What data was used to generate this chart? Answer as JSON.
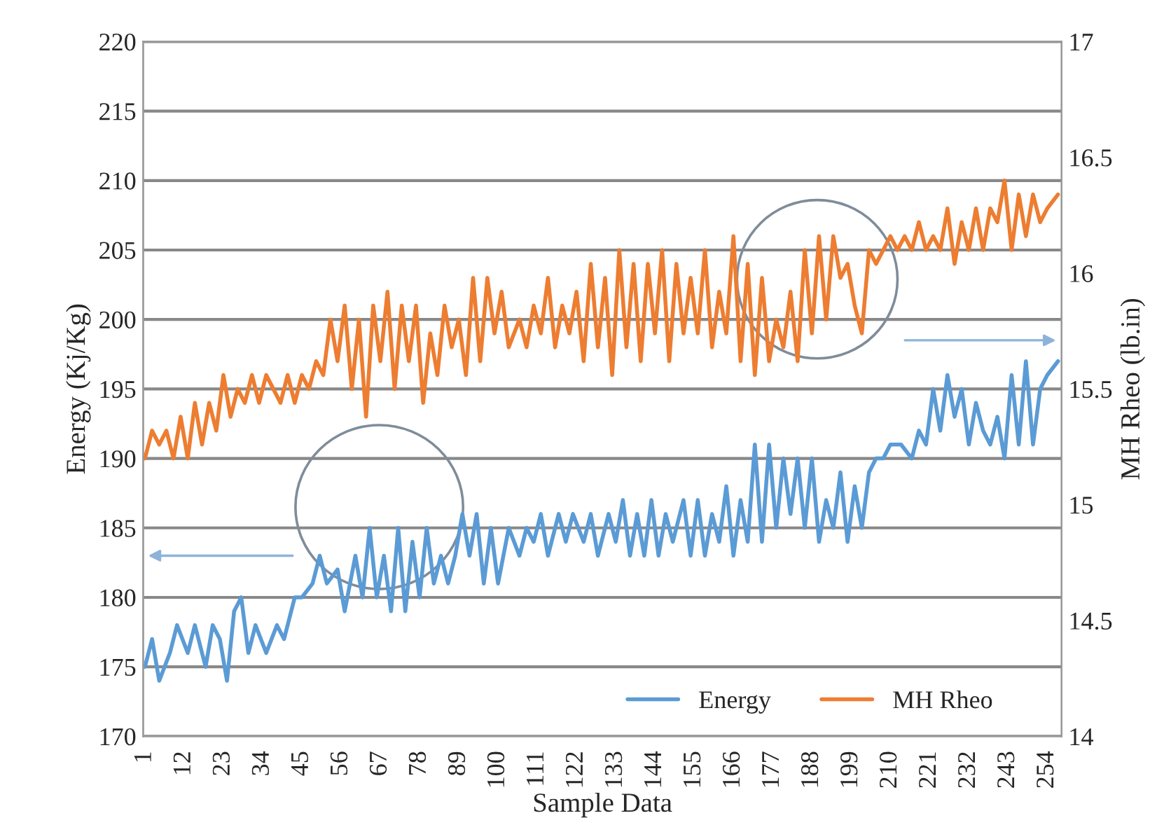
{
  "chart_data": {
    "type": "line",
    "xlabel": "Sample Data",
    "ylabel": "Energy (Kj/Kg)",
    "y2label": "MH Rheo (lb.in)",
    "xlim": [
      0.5,
      258
    ],
    "xticks": [
      1,
      12,
      23,
      34,
      45,
      56,
      67,
      78,
      89,
      100,
      111,
      122,
      133,
      144,
      155,
      166,
      177,
      188,
      199,
      210,
      221,
      232,
      243,
      254
    ],
    "ylim": [
      170,
      220
    ],
    "yticks": [
      170,
      175,
      180,
      185,
      190,
      195,
      200,
      205,
      210,
      215,
      220
    ],
    "y2lim": [
      14,
      17
    ],
    "y2ticks": [
      14,
      {
        "value": 14.5,
        "label": "14.5"
      },
      15,
      {
        "value": 15.5,
        "label": "15.5"
      },
      16,
      {
        "value": 16.5,
        "label": "16.5"
      },
      17
    ],
    "grid": "y",
    "legend": "bottom right",
    "marker": "none",
    "line_style": "solid",
    "series": [
      {
        "name": "Energy",
        "color": "#5b9bd5",
        "x": [
          1,
          3,
          5,
          8,
          10,
          13,
          15,
          18,
          20,
          22,
          24,
          26,
          28,
          30,
          32,
          35,
          38,
          40,
          43,
          45,
          48,
          50,
          52,
          55,
          57,
          60,
          62,
          64,
          66,
          68,
          70,
          72,
          74,
          76,
          78,
          80,
          82,
          84,
          86,
          88,
          90,
          92,
          94,
          96,
          98,
          100,
          103,
          106,
          108,
          110,
          112,
          114,
          117,
          119,
          121,
          124,
          126,
          128,
          131,
          133,
          135,
          137,
          139,
          141,
          143,
          145,
          147,
          149,
          152,
          154,
          156,
          158,
          160,
          162,
          164,
          166,
          168,
          170,
          172,
          174,
          176,
          178,
          180,
          182,
          184,
          186,
          188,
          190,
          192,
          194,
          196,
          198,
          200,
          202,
          204,
          206,
          208,
          210,
          213,
          216,
          218,
          220,
          222,
          224,
          226,
          228,
          230,
          232,
          234,
          236,
          238,
          240,
          242,
          244,
          246,
          248,
          250,
          252,
          254,
          257
        ],
        "values": [
          175,
          177,
          174,
          176,
          178,
          176,
          178,
          175,
          178,
          177,
          174,
          179,
          180,
          176,
          178,
          176,
          178,
          177,
          180,
          180,
          181,
          183,
          181,
          182,
          179,
          183,
          180,
          185,
          180,
          183,
          179,
          185,
          179,
          184,
          180,
          185,
          181,
          183,
          181,
          183,
          186,
          183,
          186,
          181,
          185,
          181,
          185,
          183,
          185,
          184,
          186,
          183,
          186,
          184,
          186,
          184,
          186,
          183,
          186,
          184,
          187,
          183,
          186,
          183,
          187,
          183,
          186,
          184,
          187,
          183,
          187,
          183,
          186,
          184,
          188,
          183,
          187,
          184,
          191,
          184,
          191,
          185,
          190,
          186,
          190,
          185,
          190,
          184,
          187,
          185,
          189,
          184,
          188,
          185,
          189,
          190,
          190,
          191,
          191,
          190,
          192,
          191,
          195,
          192,
          196,
          193,
          195,
          191,
          194,
          192,
          191,
          193,
          190,
          196,
          191,
          197,
          191,
          195,
          196,
          197
        ]
      },
      {
        "name": "MH Rheo",
        "color": "#ed7d31",
        "axis": "y2",
        "x": [
          1,
          3,
          5,
          7,
          9,
          11,
          13,
          15,
          17,
          19,
          21,
          23,
          25,
          27,
          29,
          31,
          33,
          35,
          37,
          39,
          41,
          43,
          45,
          47,
          49,
          51,
          53,
          55,
          57,
          59,
          61,
          63,
          65,
          67,
          69,
          71,
          73,
          75,
          77,
          79,
          81,
          83,
          85,
          87,
          89,
          91,
          93,
          95,
          97,
          99,
          101,
          103,
          106,
          108,
          110,
          112,
          114,
          116,
          118,
          120,
          122,
          124,
          126,
          128,
          130,
          132,
          134,
          136,
          138,
          140,
          142,
          144,
          146,
          148,
          150,
          152,
          154,
          156,
          158,
          160,
          162,
          164,
          166,
          168,
          170,
          172,
          174,
          176,
          178,
          180,
          182,
          184,
          186,
          188,
          190,
          192,
          194,
          196,
          198,
          200,
          202,
          204,
          206,
          208,
          210,
          212,
          214,
          216,
          218,
          220,
          222,
          224,
          226,
          228,
          230,
          232,
          234,
          236,
          238,
          240,
          242,
          244,
          246,
          248,
          250,
          252,
          254,
          257
        ],
        "values": [
          15.2,
          15.32,
          15.26,
          15.32,
          15.2,
          15.38,
          15.2,
          15.44,
          15.26,
          15.44,
          15.32,
          15.56,
          15.38,
          15.5,
          15.44,
          15.56,
          15.44,
          15.56,
          15.5,
          15.44,
          15.56,
          15.44,
          15.56,
          15.5,
          15.62,
          15.56,
          15.8,
          15.62,
          15.86,
          15.5,
          15.8,
          15.38,
          15.86,
          15.62,
          15.92,
          15.5,
          15.86,
          15.62,
          15.86,
          15.44,
          15.74,
          15.56,
          15.86,
          15.68,
          15.8,
          15.56,
          15.98,
          15.62,
          15.98,
          15.74,
          15.92,
          15.68,
          15.8,
          15.68,
          15.86,
          15.74,
          15.98,
          15.68,
          15.86,
          15.74,
          15.92,
          15.62,
          16.04,
          15.68,
          15.98,
          15.56,
          16.1,
          15.68,
          16.04,
          15.62,
          16.04,
          15.74,
          16.1,
          15.62,
          16.04,
          15.74,
          15.98,
          15.74,
          16.1,
          15.68,
          15.92,
          15.74,
          16.16,
          15.62,
          16.04,
          15.56,
          15.98,
          15.62,
          15.8,
          15.68,
          15.92,
          15.62,
          16.1,
          15.74,
          16.16,
          15.8,
          16.16,
          15.98,
          16.04,
          15.86,
          15.74,
          16.1,
          16.04,
          16.1,
          16.16,
          16.1,
          16.16,
          16.1,
          16.22,
          16.1,
          16.16,
          16.1,
          16.28,
          16.04,
          16.22,
          16.1,
          16.28,
          16.1,
          16.28,
          16.22,
          16.4,
          16.1,
          16.34,
          16.16,
          16.34,
          16.22,
          16.28,
          16.34
        ]
      }
    ]
  }
}
